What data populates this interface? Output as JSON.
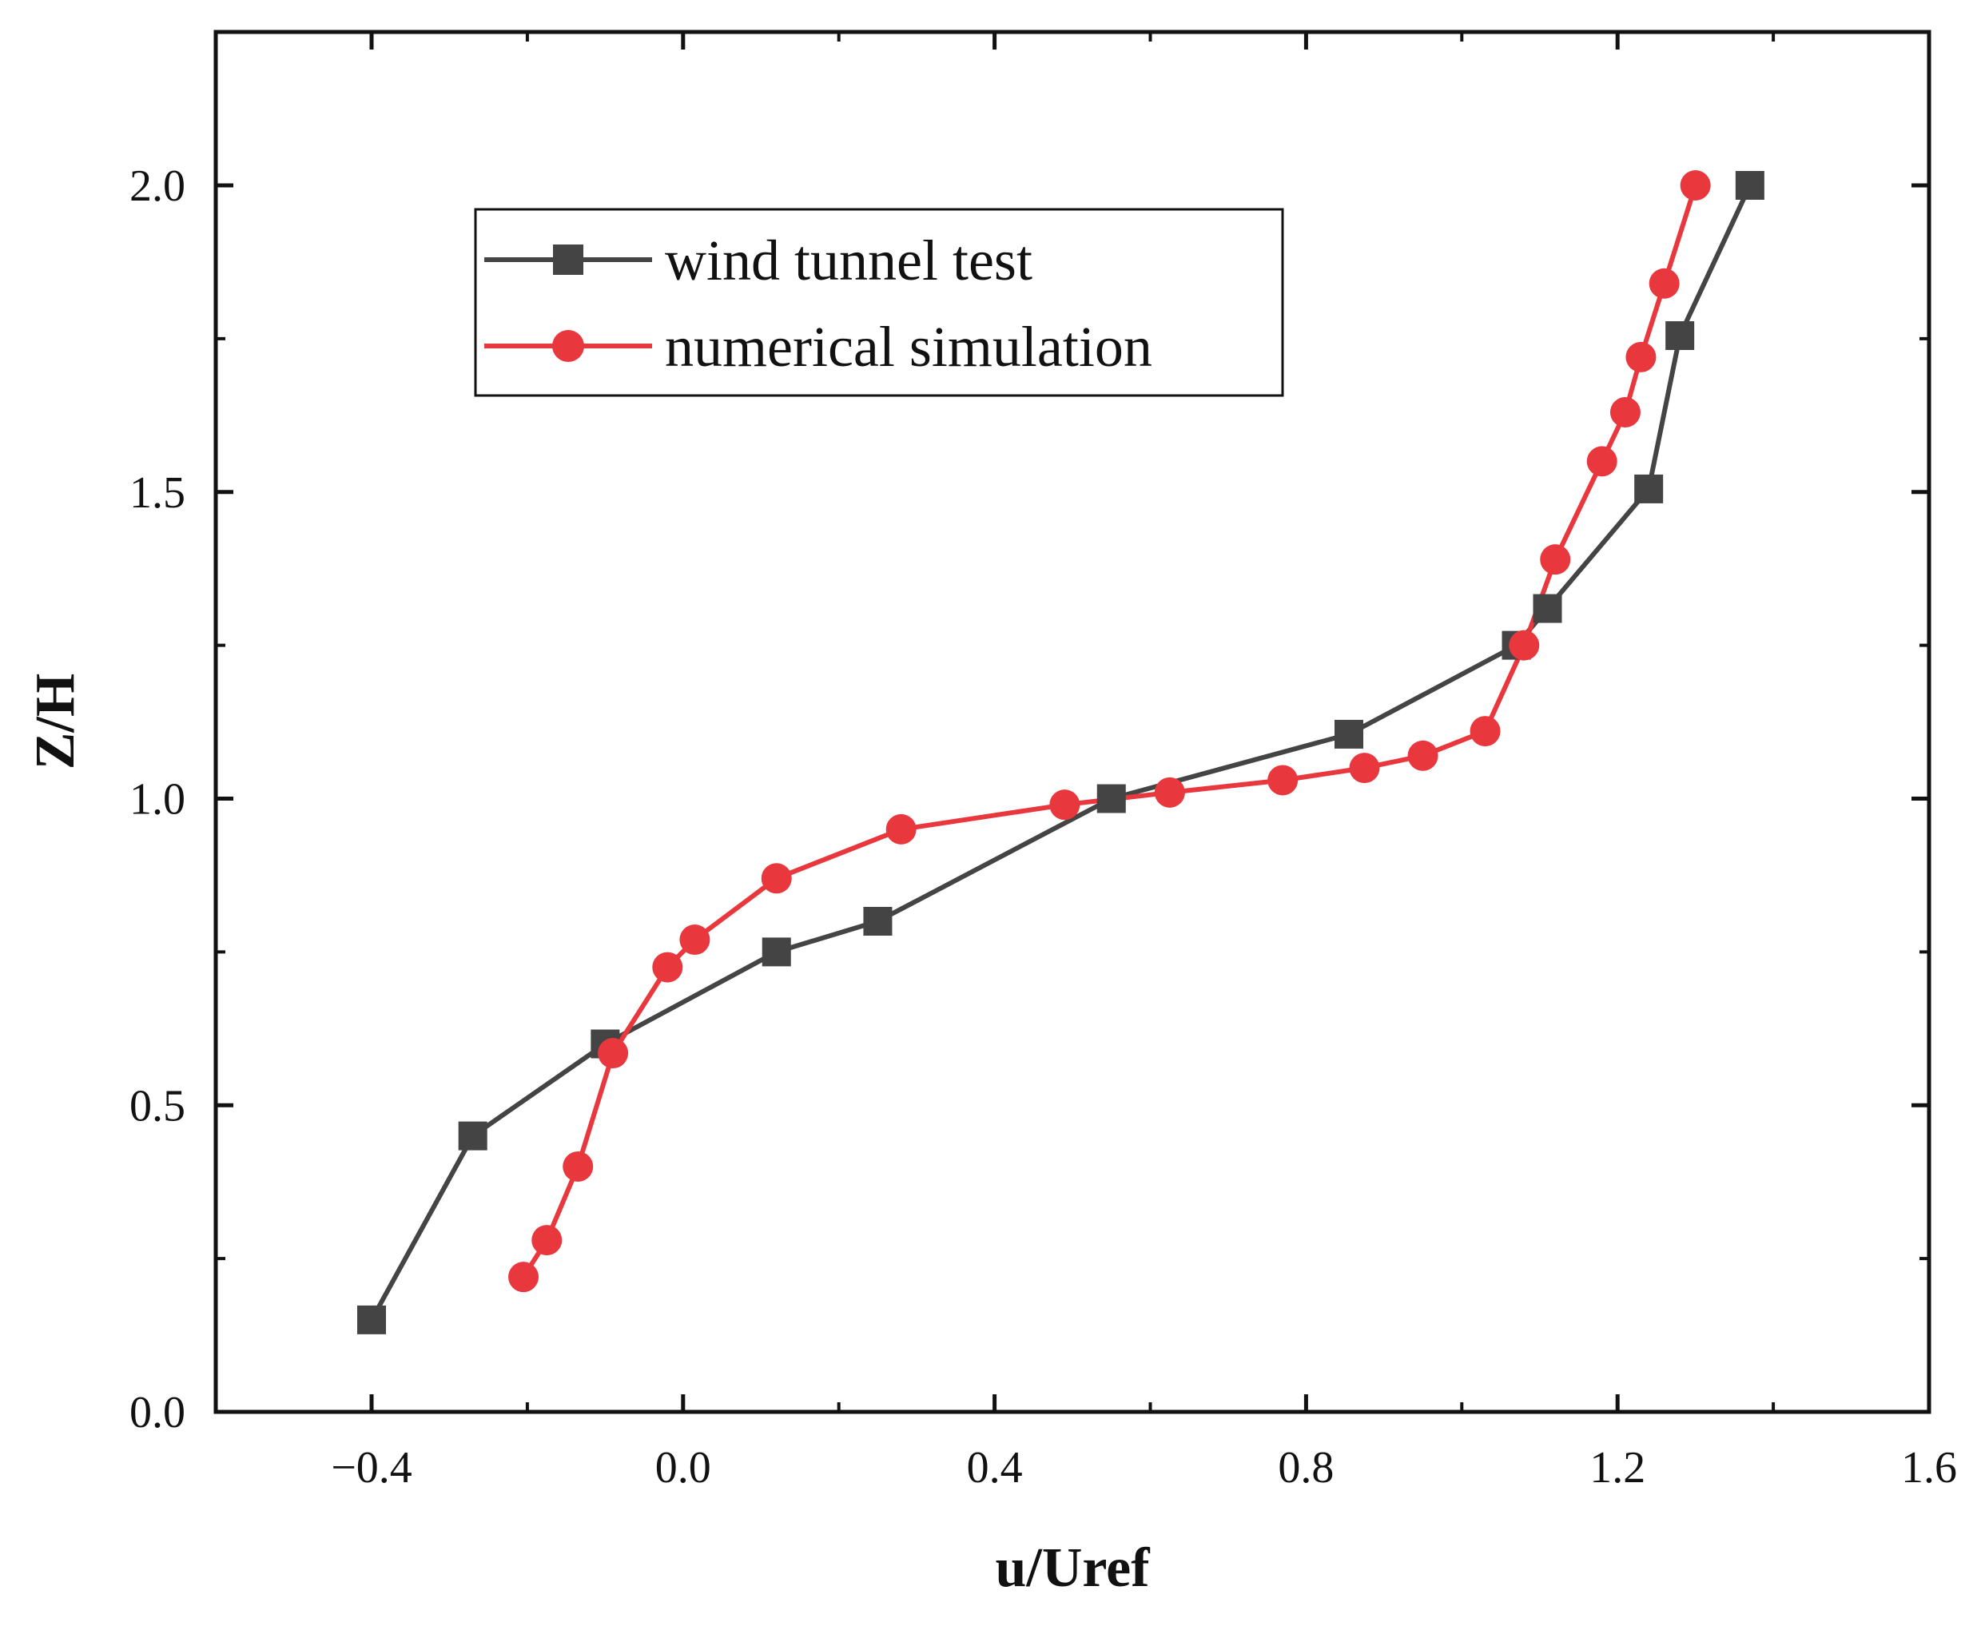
{
  "chart_data": {
    "type": "line",
    "title": "",
    "xlabel": "u/Uref",
    "ylabel": "Z/H",
    "xlim": [
      -0.6,
      1.6
    ],
    "ylim": [
      0.0,
      2.25
    ],
    "x_ticks": [
      -0.4,
      0.0,
      0.4,
      0.8,
      1.2,
      1.6
    ],
    "x_tick_labels": [
      "−0.4",
      "0.0",
      "0.4",
      "0.8",
      "1.2",
      "1.6"
    ],
    "y_ticks": [
      0.0,
      0.5,
      1.0,
      1.5,
      2.0
    ],
    "y_tick_labels": [
      "0.0",
      "0.5",
      "1.0",
      "1.5",
      "2.0"
    ],
    "grid": false,
    "legend_position": "top-left",
    "series": [
      {
        "name": "wind tunnel test",
        "color": "#444444",
        "marker": "square",
        "points": [
          {
            "x": -0.4,
            "y": 0.15
          },
          {
            "x": -0.27,
            "y": 0.45
          },
          {
            "x": -0.1,
            "y": 0.6
          },
          {
            "x": 0.12,
            "y": 0.75
          },
          {
            "x": 0.25,
            "y": 0.8
          },
          {
            "x": 0.55,
            "y": 1.0
          },
          {
            "x": 0.855,
            "y": 1.105
          },
          {
            "x": 1.07,
            "y": 1.25
          },
          {
            "x": 1.11,
            "y": 1.31
          },
          {
            "x": 1.24,
            "y": 1.505
          },
          {
            "x": 1.28,
            "y": 1.755
          },
          {
            "x": 1.37,
            "y": 2.0
          }
        ]
      },
      {
        "name": "numerical simulation",
        "color": "#e8373d",
        "marker": "circle",
        "points": [
          {
            "x": -0.205,
            "y": 0.22
          },
          {
            "x": -0.175,
            "y": 0.28
          },
          {
            "x": -0.135,
            "y": 0.4
          },
          {
            "x": -0.09,
            "y": 0.585
          },
          {
            "x": -0.02,
            "y": 0.725
          },
          {
            "x": 0.015,
            "y": 0.77
          },
          {
            "x": 0.12,
            "y": 0.87
          },
          {
            "x": 0.28,
            "y": 0.95
          },
          {
            "x": 0.49,
            "y": 0.99
          },
          {
            "x": 0.625,
            "y": 1.01
          },
          {
            "x": 0.77,
            "y": 1.03
          },
          {
            "x": 0.875,
            "y": 1.05
          },
          {
            "x": 0.95,
            "y": 1.07
          },
          {
            "x": 1.03,
            "y": 1.11
          },
          {
            "x": 1.08,
            "y": 1.25
          },
          {
            "x": 1.12,
            "y": 1.39
          },
          {
            "x": 1.18,
            "y": 1.55
          },
          {
            "x": 1.21,
            "y": 1.63
          },
          {
            "x": 1.23,
            "y": 1.72
          },
          {
            "x": 1.26,
            "y": 1.84
          },
          {
            "x": 1.3,
            "y": 2.0
          }
        ]
      }
    ]
  }
}
